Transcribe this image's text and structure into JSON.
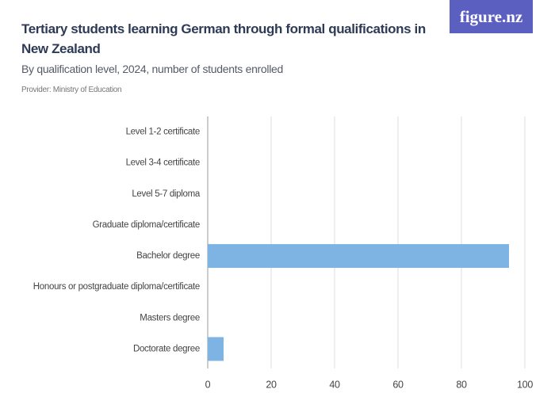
{
  "chart_data": {
    "type": "bar",
    "orientation": "horizontal",
    "title": "Tertiary students learning German through formal qualifications in New Zealand",
    "subtitle": "By qualification level, 2024, number of students enrolled",
    "provider": "Provider: Ministry of Education",
    "logo": "figure.nz",
    "categories": [
      "Level 1-2 certificate",
      "Level 3-4 certificate",
      "Level 5-7 diploma",
      "Graduate diploma/certificate",
      "Bachelor degree",
      "Honours or postgraduate diploma/certificate",
      "Masters degree",
      "Doctorate degree"
    ],
    "values": [
      0,
      0,
      0,
      0,
      95,
      0,
      0,
      5
    ],
    "color": "#7eb4e4",
    "xlim": [
      0,
      100
    ],
    "xticks": [
      0,
      20,
      40,
      60,
      80,
      100
    ],
    "grid": true
  }
}
